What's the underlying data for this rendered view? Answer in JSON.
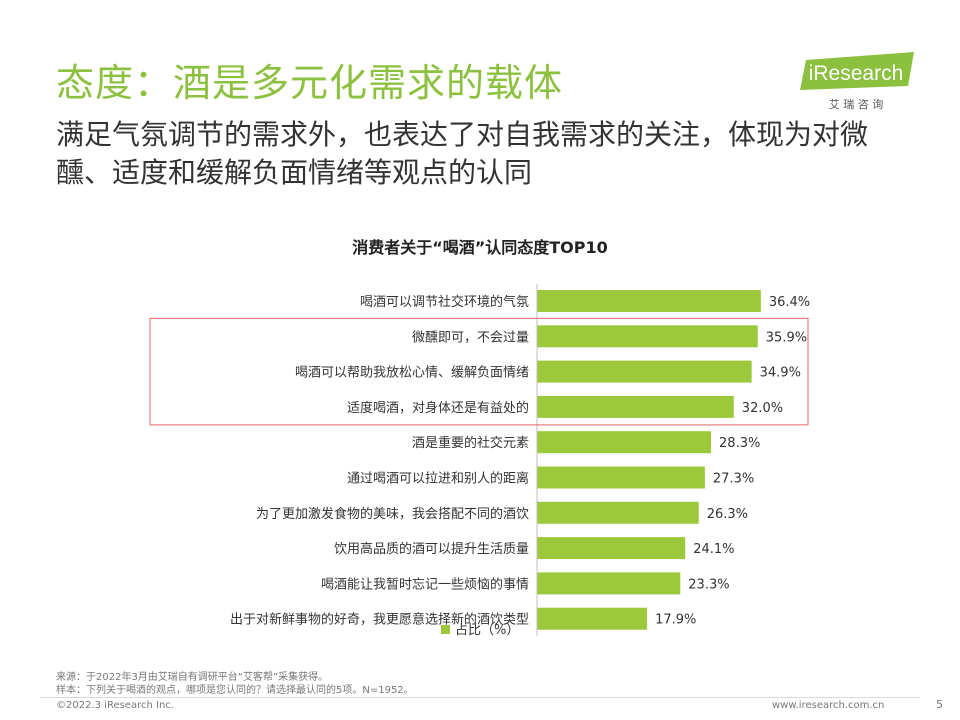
{
  "header": {
    "title": "态度：酒是多元化需求的载体",
    "subtitle": "满足气氛调节的需求外，也表达了对自我需求的关注，体现为对微醺、适度和缓解负面情绪等观点的认同"
  },
  "logo": {
    "brand": "iResearch",
    "tagline": "艾 瑞 咨 询"
  },
  "colors": {
    "title": "#8cc13f",
    "bar": "#9cc93c",
    "highlight": "#e06666",
    "axis": "#bfbfbf"
  },
  "chart_data": {
    "type": "bar",
    "orientation": "horizontal",
    "title": "消费者关于“喝酒”认同态度TOP10",
    "categories": [
      "喝酒可以调节社交环境的气氛",
      "微醺即可，不会过量",
      "喝酒可以帮助我放松心情、缓解负面情绪",
      "适度喝酒，对身体还是有益处的",
      "酒是重要的社交元素",
      "通过喝酒可以拉进和别人的距离",
      "为了更加激发食物的美味，我会搭配不同的酒饮",
      "饮用高品质的酒可以提升生活质量",
      "喝酒能让我暂时忘记一些烦恼的事情",
      "出于对新鲜事物的好奇，我更愿意选择新的酒饮类型"
    ],
    "series": [
      {
        "name": "占比（%）",
        "values": [
          36.4,
          35.9,
          34.9,
          32.0,
          28.3,
          27.3,
          26.3,
          24.1,
          23.3,
          17.9
        ]
      }
    ],
    "value_labels": [
      "36.4%",
      "35.9%",
      "34.9%",
      "32.0%",
      "28.3%",
      "27.3%",
      "26.3%",
      "24.1%",
      "23.3%",
      "17.9%"
    ],
    "highlighted_categories": [
      1,
      2,
      3
    ],
    "xlim": [
      0,
      40
    ],
    "legend": "bottom-center",
    "xlabel": "",
    "ylabel": ""
  },
  "footnotes": {
    "source": "来源：于2022年3月由艾瑞自有调研平台“艾客帮”采集获得。",
    "sample": "样本：下列关于喝酒的观点，哪项是您认同的？请选择最认同的5项。N=1952。"
  },
  "footer": {
    "copyright": "©2022.3 iResearch Inc.",
    "website": "www.iresearch.com.cn",
    "page": "5"
  }
}
